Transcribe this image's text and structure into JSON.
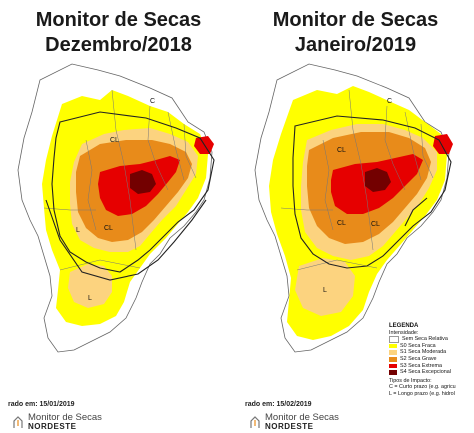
{
  "panels": [
    {
      "title_line1": "Monitor de Secas",
      "title_line2": "Dezembro/2018",
      "released": "rado em: 15/01/2019",
      "impact_labels": [
        "C",
        "CL",
        "CL",
        "L",
        "L"
      ]
    },
    {
      "title_line1": "Monitor de Secas",
      "title_line2": "Janeiro/2019",
      "released": "rado em: 15/02/2019",
      "impact_labels": [
        "C",
        "CL",
        "CL",
        "CL",
        "L"
      ]
    }
  ],
  "legend": {
    "title": "LEGENDA",
    "intensity_title": "Intensidade:",
    "items": [
      {
        "label": "Sem Seca Relativa",
        "color": "#ffffff"
      },
      {
        "label": "S0 Seca Fraca",
        "color": "#ffff00"
      },
      {
        "label": "S1 Seca Moderada",
        "color": "#fcd37f"
      },
      {
        "label": "S2 Seca Grave",
        "color": "#e88b1a"
      },
      {
        "label": "S3 Seca Extrema",
        "color": "#e60000"
      },
      {
        "label": "S4 Seca Excepcional",
        "color": "#730000"
      }
    ],
    "impact_title": "Tipos de Impacto:",
    "impact_short": "C = Curto prazo (e.g. agricu",
    "impact_long": "L = Longo prazo (e.g. hidrol"
  },
  "logo": {
    "name": "Monitor de Secas",
    "region": "NORDESTE"
  },
  "colors": {
    "s0": "#ffff00",
    "s1": "#fcd37f",
    "s2": "#e88b1a",
    "s3": "#e60000",
    "s4": "#730000",
    "border": "#555555",
    "impact_line": "#222222"
  }
}
